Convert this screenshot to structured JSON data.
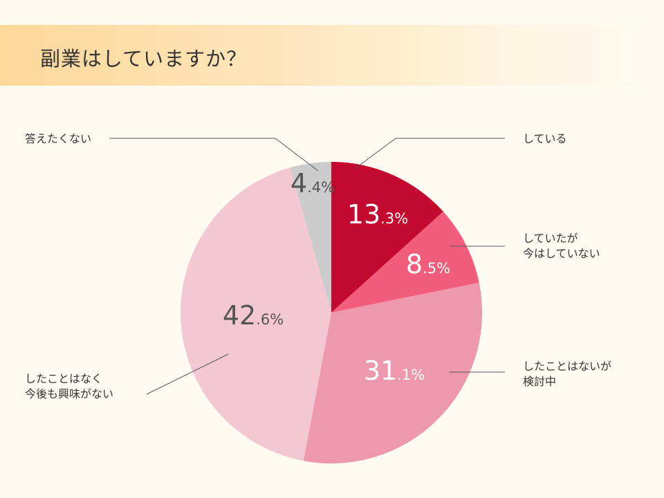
{
  "title": "副業はしていますか？",
  "chart_data": {
    "type": "pie",
    "title": "副業はしていますか？",
    "start_angle_deg": 0,
    "direction": "clockwise",
    "legend": "none",
    "slices": [
      {
        "label_lines": [
          "している"
        ],
        "value": 13.3,
        "int": "13",
        "dec": ".3",
        "unit": "%",
        "color": "#c4092e",
        "text_color": "#ffffff"
      },
      {
        "label_lines": [
          "していたが",
          "今はしていない"
        ],
        "value": 8.5,
        "int": "8",
        "dec": ".5",
        "unit": "%",
        "color": "#f35d7c",
        "text_color": "#ffffff"
      },
      {
        "label_lines": [
          "したことはないが",
          "検討中"
        ],
        "value": 31.1,
        "int": "31",
        "dec": ".1",
        "unit": "%",
        "color": "#ed98ad",
        "text_color": "#ffffff"
      },
      {
        "label_lines": [
          "したことはなく",
          "今後も興味がない"
        ],
        "value": 42.6,
        "int": "42",
        "dec": ".6",
        "unit": "%",
        "color": "#f4c8d3",
        "text_color": "#555555"
      },
      {
        "label_lines": [
          "答えたくない"
        ],
        "value": 4.4,
        "int": "4",
        "dec": ".4",
        "unit": "%",
        "color": "#cccccc",
        "text_color": "#555555"
      }
    ]
  }
}
